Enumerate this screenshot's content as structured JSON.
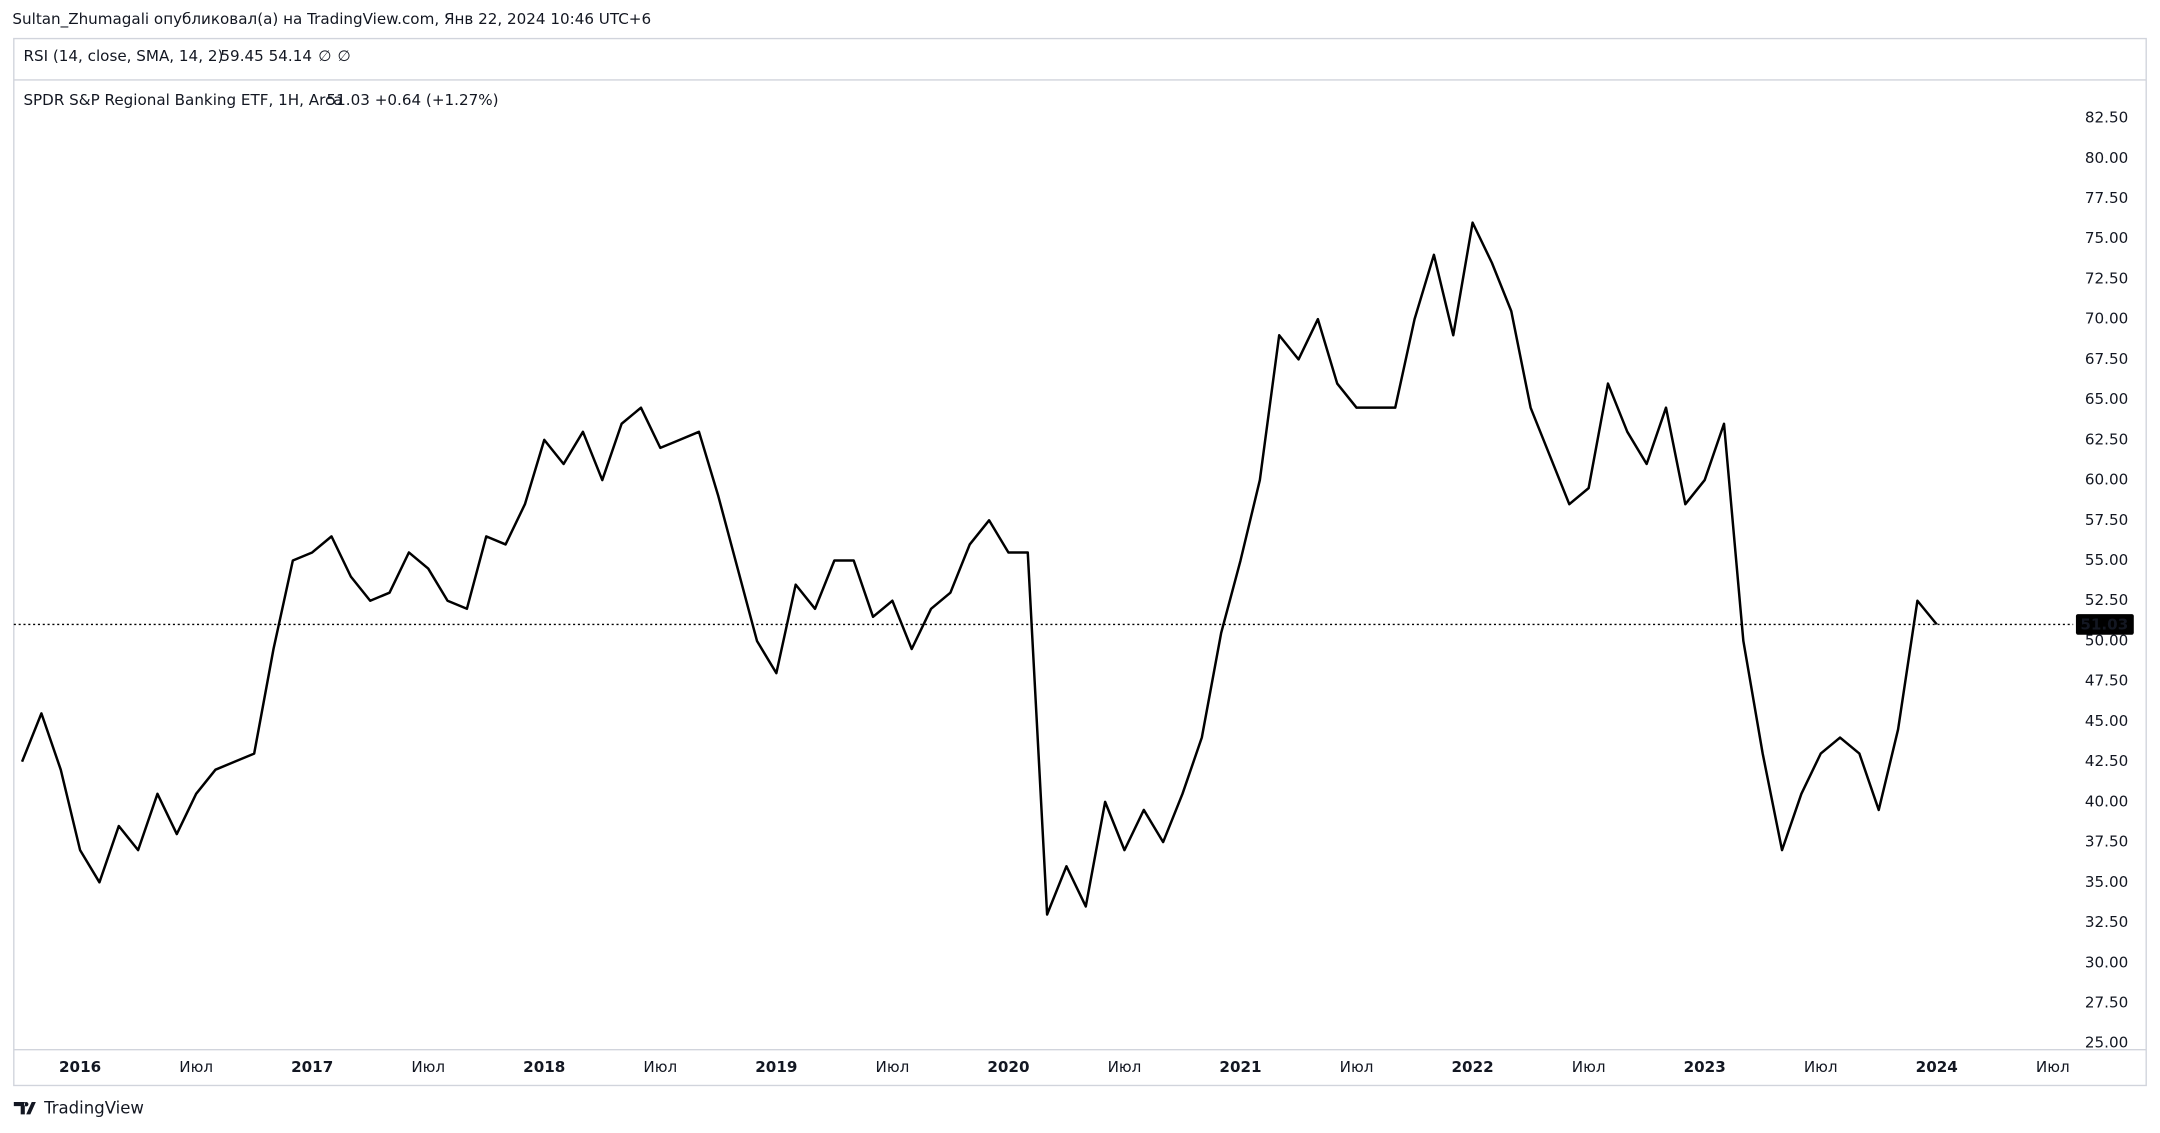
{
  "header": {
    "published": "Sultan_Zhumagali опубликовал(а) на TradingView.com, Янв 22, 2024 10:46 UTC+6",
    "indicator": "RSI (14, close, SMA, 14, 2)",
    "indicator_values": [
      {
        "text": "59.45",
        "color": "#7e57c2"
      },
      {
        "text": "54.14",
        "color": "#f2c500"
      },
      {
        "text": "∅",
        "color": "#131722"
      },
      {
        "text": "∅",
        "color": "#131722"
      }
    ]
  },
  "chart_data": {
    "type": "line",
    "title": "SPDR S&P Regional Banking ETF, 1H, Arca",
    "last_value": 51.03,
    "change": "+0.64 (+1.27%)",
    "color": "#000000",
    "categories": [
      null,
      null,
      null,
      "2016",
      null,
      null,
      null,
      null,
      null,
      "Июл",
      null,
      null,
      null,
      null,
      null,
      "2017",
      null,
      null,
      null,
      null,
      null,
      "Июл",
      null,
      null,
      null,
      null,
      null,
      "2018",
      null,
      null,
      null,
      null,
      null,
      "Июл",
      null,
      null,
      null,
      null,
      null,
      "2019",
      null,
      null,
      null,
      null,
      null,
      "Июл",
      null,
      null,
      null,
      null,
      null,
      "2020",
      null,
      null,
      null,
      null,
      null,
      "Июл",
      null,
      null,
      null,
      null,
      null,
      "2021",
      null,
      null,
      null,
      null,
      null,
      "Июл",
      null,
      null,
      null,
      null,
      null,
      "2022",
      null,
      null,
      null,
      null,
      null,
      "Июл",
      null,
      null,
      null,
      null,
      null,
      "2023",
      null,
      null,
      null,
      null,
      null,
      "Июл",
      null,
      null,
      null,
      null,
      null,
      "2024",
      null,
      null,
      null,
      null,
      null,
      "Июл",
      null
    ],
    "values": [
      42.5,
      45.5,
      42,
      37,
      35,
      38.5,
      37,
      40.5,
      38,
      40.5,
      42,
      42.5,
      43,
      49.5,
      55,
      55.5,
      56.5,
      54,
      52.5,
      53,
      55.5,
      54.5,
      52.5,
      52,
      56.5,
      56,
      58.5,
      62.5,
      61,
      63,
      60,
      63.5,
      64.5,
      62,
      62.5,
      63,
      59,
      54.5,
      50,
      48,
      53.5,
      52,
      55,
      55,
      51.5,
      52.5,
      49.5,
      52,
      53,
      56,
      57.5,
      55.5,
      55.5,
      33,
      36,
      33.5,
      40,
      37,
      39.5,
      37.5,
      40.5,
      44,
      50.5,
      55,
      60,
      69,
      67.5,
      70,
      66,
      64.5,
      64.5,
      64.5,
      70,
      74,
      69,
      76,
      73.5,
      70.5,
      64.5,
      61.5,
      58.5,
      59.5,
      66,
      63,
      61,
      64.5,
      58.5,
      60,
      63.5,
      50,
      43,
      37,
      40.5,
      43,
      44,
      43,
      39.5,
      44.5,
      52.5,
      51.03,
      null,
      null,
      null,
      null,
      null,
      null,
      null
    ],
    "ylim": [
      24.6,
      84.7
    ],
    "yticks": [
      {
        "value": 25,
        "label": "25.00"
      },
      {
        "value": 27.5,
        "label": "27.50"
      },
      {
        "value": 30,
        "label": "30.00"
      },
      {
        "value": 32.5,
        "label": "32.50"
      },
      {
        "value": 35,
        "label": "35.00"
      },
      {
        "value": 37.5,
        "label": "37.50"
      },
      {
        "value": 40,
        "label": "40.00"
      },
      {
        "value": 42.5,
        "label": "42.50"
      },
      {
        "value": 45,
        "label": "45.00"
      },
      {
        "value": 47.5,
        "label": "47.50"
      },
      {
        "value": 50,
        "label": "50.00"
      },
      {
        "value": 52.5,
        "label": "52.50"
      },
      {
        "value": 55,
        "label": "55.00"
      },
      {
        "value": 57.5,
        "label": "57.50"
      },
      {
        "value": 60,
        "label": "60.00"
      },
      {
        "value": 62.5,
        "label": "62.50"
      },
      {
        "value": 65,
        "label": "65.00"
      },
      {
        "value": 67.5,
        "label": "67.50"
      },
      {
        "value": 70,
        "label": "70.00"
      },
      {
        "value": 72.5,
        "label": "72.50"
      },
      {
        "value": 75,
        "label": "75.00"
      },
      {
        "value": 77.5,
        "label": "77.50"
      },
      {
        "value": 80,
        "label": "80.00"
      },
      {
        "value": 82.5,
        "label": "82.50"
      }
    ],
    "grid": false
  },
  "footer": {
    "brand": "TradingView"
  }
}
